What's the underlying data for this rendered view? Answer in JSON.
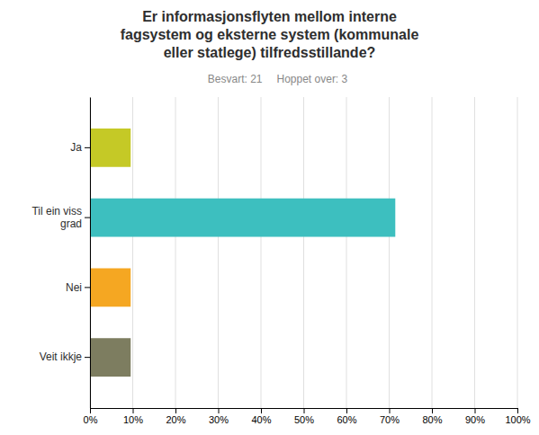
{
  "chart_data": {
    "type": "bar",
    "title": "Er informasjonsflyten mellom interne\nfagsystem og eksterne system (kommunale\neller statlege) tilfredsstillande?",
    "subtitle": [
      "Besvart: 21",
      "Hoppet over: 3"
    ],
    "orientation": "horizontal",
    "categories": [
      "Ja",
      "Til ein viss\ngrad",
      "Nei",
      "Veit ikkje"
    ],
    "values": [
      9.52,
      71.43,
      9.52,
      9.52
    ],
    "colors": [
      "#c5c926",
      "#3dbfbf",
      "#f5a722",
      "#7d7d60"
    ],
    "xlim": [
      0,
      100
    ],
    "xticks": [
      {
        "value": 0,
        "label": "0%"
      },
      {
        "value": 10,
        "label": "10%"
      },
      {
        "value": 20,
        "label": "20%"
      },
      {
        "value": 30,
        "label": "30%"
      },
      {
        "value": 40,
        "label": "40%"
      },
      {
        "value": 50,
        "label": "50%"
      },
      {
        "value": 60,
        "label": "60%"
      },
      {
        "value": 70,
        "label": "70%"
      },
      {
        "value": 80,
        "label": "80%"
      },
      {
        "value": 90,
        "label": "90%"
      },
      {
        "value": 100,
        "label": "100%"
      }
    ],
    "grid": true
  }
}
